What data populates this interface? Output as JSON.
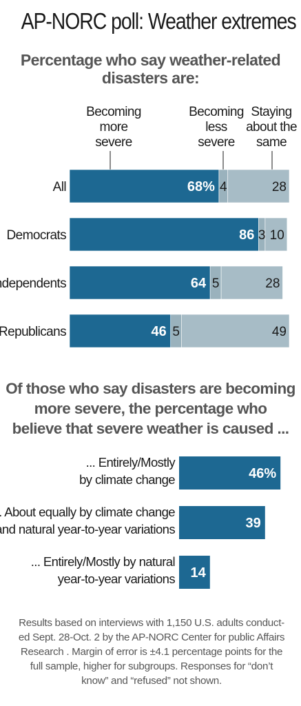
{
  "page": {
    "title": "AP-NORC poll: Weather extremes",
    "footnote_lines": [
      "Results based on interviews with 1,150 U.S. adults conduct-",
      "ed Sept. 28-Oct. 2 by the AP-NORC Center for public Affairs",
      "Research . Margin of error is ±4.1 percentage points for the",
      "full sample, higher for subgroups. Responses for “don’t",
      "know” and “refused” not shown."
    ]
  },
  "colors": {
    "primary": "#1d6892",
    "secondary": "#9ab2bd",
    "light": "#a7bcc6",
    "text": "#1a1a1a",
    "muted": "#555555"
  },
  "chart_data": [
    {
      "type": "bar",
      "stacked": true,
      "orientation": "horizontal",
      "title": "Percentage who say weather-related disasters are:",
      "title_lines": [
        "Percentage who say weather-related",
        "disasters are:"
      ],
      "categories": [
        "All",
        "Democrats",
        "Independents",
        "Republicans"
      ],
      "series": [
        {
          "name": "Becoming more severe",
          "name_lines": [
            "Becoming",
            "more",
            "severe"
          ],
          "values": [
            68,
            86,
            64,
            46
          ],
          "labels": [
            "68%",
            "86",
            "64",
            "46"
          ]
        },
        {
          "name": "Becoming less severe",
          "name_lines": [
            "Becoming",
            "less",
            "severe"
          ],
          "values": [
            4,
            3,
            5,
            5
          ],
          "labels": [
            "4",
            "3",
            "5",
            "5"
          ]
        },
        {
          "name": "Staying about the same",
          "name_lines": [
            "Staying",
            "about the",
            "same"
          ],
          "values": [
            28,
            10,
            28,
            49
          ],
          "labels": [
            "28",
            "10",
            "28",
            "49"
          ]
        }
      ],
      "xlim": [
        0,
        100
      ],
      "grid": false,
      "legend": "top"
    },
    {
      "type": "bar",
      "orientation": "horizontal",
      "title": "Of those who say disasters are becoming more severe, the percentage who believe that severe weather is caused ...",
      "title_lines": [
        "Of those who say disasters are becoming",
        "more severe, the percentage who",
        "believe that severe weather is caused ..."
      ],
      "categories": [
        "... Entirely/Mostly by climate change",
        "... About equally by climate change and natural year-to-year variations",
        "... Entirely/Mostly by natural year-to-year variations"
      ],
      "category_lines": [
        [
          "... Entirely/Mostly",
          "by climate change"
        ],
        [
          "... About equally by climate change",
          "and natural year-to-year variations"
        ],
        [
          "... Entirely/Mostly by natural",
          "year-to-year variations"
        ]
      ],
      "values": [
        46,
        39,
        14
      ],
      "labels": [
        "46%",
        "39",
        "14"
      ],
      "xlim": [
        0,
        100
      ],
      "grid": false
    }
  ]
}
